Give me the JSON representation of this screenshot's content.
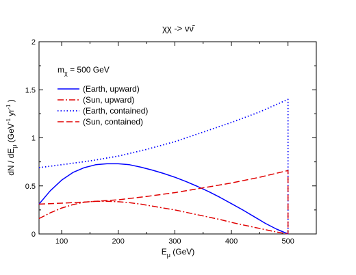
{
  "chart_data": {
    "type": "line",
    "title": "χχ -> νν̄",
    "xlabel": "E_μ (GeV)",
    "ylabel": "dN / dE_μ (GeV^-1 yr^-1 )",
    "xlim": [
      60,
      550
    ],
    "ylim": [
      0,
      2
    ],
    "xticks": [
      "100",
      "200",
      "300",
      "400",
      "500"
    ],
    "xtick_values": [
      100,
      200,
      300,
      400,
      500
    ],
    "yticks": [
      "0",
      "0.5",
      "1",
      "1.5",
      "2"
    ],
    "ytick_values": [
      0,
      0.5,
      1,
      1.5,
      2
    ],
    "grid": false,
    "legend_position": "top-left",
    "annotation": "m_χ = 500 GeV",
    "series": [
      {
        "name": "(Earth, upward)",
        "color": "#0000ff",
        "dash": "solid",
        "x": [
          60,
          80,
          100,
          120,
          140,
          160,
          180,
          200,
          220,
          240,
          260,
          280,
          300,
          320,
          340,
          360,
          380,
          400,
          420,
          440,
          460,
          480,
          500
        ],
        "y": [
          0.31,
          0.45,
          0.56,
          0.64,
          0.69,
          0.72,
          0.73,
          0.73,
          0.72,
          0.695,
          0.665,
          0.63,
          0.59,
          0.545,
          0.495,
          0.44,
          0.38,
          0.315,
          0.25,
          0.18,
          0.11,
          0.05,
          0.0
        ]
      },
      {
        "name": "(Sun, upward)",
        "color": "#e00000",
        "dash": "dash-dot",
        "x": [
          60,
          80,
          100,
          120,
          140,
          160,
          180,
          200,
          220,
          240,
          260,
          280,
          300,
          320,
          340,
          360,
          380,
          400,
          420,
          440,
          460,
          480,
          500
        ],
        "y": [
          0.16,
          0.22,
          0.27,
          0.305,
          0.33,
          0.34,
          0.34,
          0.335,
          0.325,
          0.31,
          0.29,
          0.27,
          0.25,
          0.225,
          0.2,
          0.175,
          0.15,
          0.12,
          0.095,
          0.07,
          0.045,
          0.02,
          0.0
        ]
      },
      {
        "name": "(Earth, contained)",
        "color": "#0000ff",
        "dash": "dotted",
        "x": [
          60,
          100,
          150,
          200,
          250,
          300,
          350,
          400,
          450,
          500,
          500
        ],
        "y": [
          0.69,
          0.72,
          0.76,
          0.81,
          0.88,
          0.96,
          1.06,
          1.16,
          1.27,
          1.4,
          0.0
        ]
      },
      {
        "name": "(Sun, contained)",
        "color": "#e00000",
        "dash": "dashed",
        "x": [
          60,
          100,
          150,
          200,
          250,
          300,
          350,
          400,
          450,
          500,
          500
        ],
        "y": [
          0.31,
          0.32,
          0.335,
          0.355,
          0.39,
          0.43,
          0.48,
          0.53,
          0.59,
          0.66,
          0.0
        ]
      }
    ]
  }
}
